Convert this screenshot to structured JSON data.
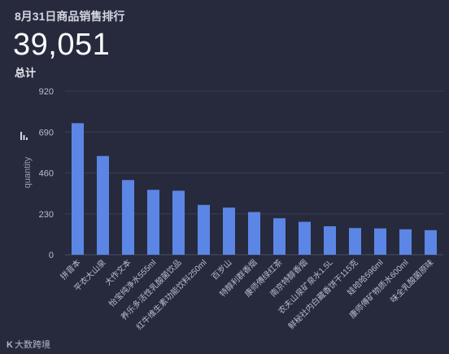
{
  "header": {
    "title": "8月31日商品销售排行",
    "total_value": "39,051",
    "total_label": "总计"
  },
  "footer": {
    "logo_text": "大数跨境",
    "logo_mark": "K"
  },
  "chart_data": {
    "type": "bar",
    "title": "8月31日商品销售排行",
    "ylabel": "quantity",
    "xlabel": "",
    "ylim": [
      0,
      920
    ],
    "yticks": [
      0,
      230,
      460,
      690,
      920
    ],
    "grid": true,
    "bar_color": "#5b86e5",
    "categories": [
      "拼音本",
      "平衣大山泉",
      "大作文本",
      "怡宝纯净水555ml",
      "养乐多活性乳酸菌饮品",
      "红牛维生素功能饮料250ml",
      "百岁山",
      "特醇利群香烟",
      "康师傅绿红茶",
      "南京特醇香烟",
      "农夫山泉矿泉水1.5L",
      "鲜秘社内白藏香饼干115克",
      "娃哈哈596ml",
      "康师傅矿物质水600ml",
      "味全乳酸菌原味"
    ],
    "values": [
      740,
      555,
      420,
      365,
      360,
      280,
      265,
      240,
      205,
      185,
      160,
      150,
      148,
      143,
      138
    ]
  }
}
